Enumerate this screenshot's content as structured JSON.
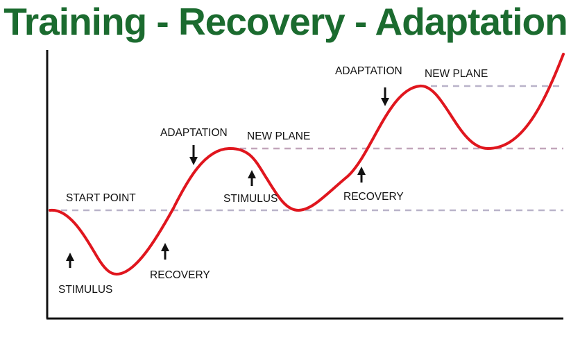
{
  "title": "Training - Recovery - Adaptation",
  "colors": {
    "title": "#1b6b2f",
    "curve": "#e0161e",
    "axis": "#111111",
    "dashed_line": "#b9b3c9"
  },
  "labels": {
    "start_point": "START POINT",
    "stimulus_1": "STIMULUS",
    "recovery_1": "RECOVERY",
    "adaptation_1": "ADAPTATION",
    "new_plane_1": "NEW PLANE",
    "stimulus_2": "STIMULUS",
    "recovery_2": "RECOVERY",
    "adaptation_2": "ADAPTATION",
    "new_plane_2": "NEW PLANE"
  },
  "icons": {
    "arrow_up": "arrow-up-icon",
    "arrow_down": "arrow-down-icon"
  }
}
